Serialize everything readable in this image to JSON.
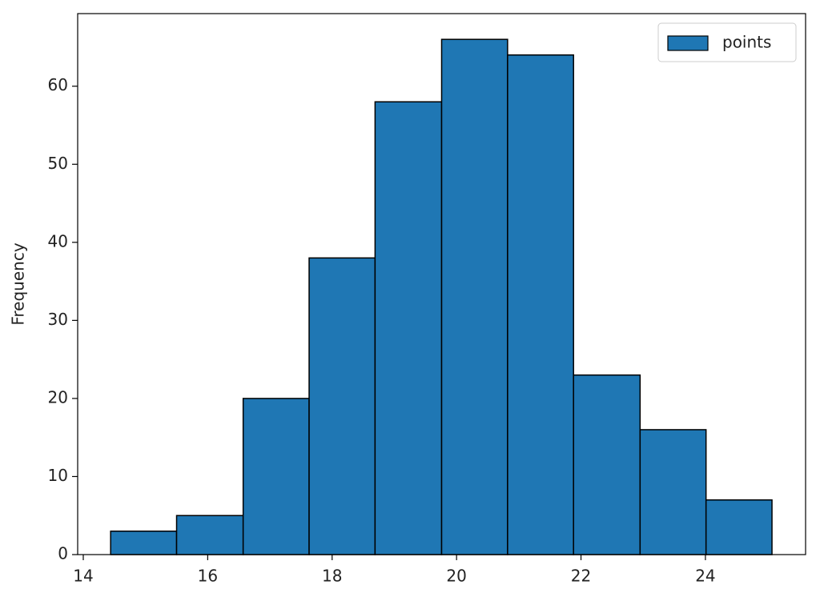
{
  "chart_data": {
    "type": "histogram",
    "ylabel": "Frequency",
    "bins": [
      14.44,
      15.5,
      16.57,
      17.63,
      18.69,
      19.76,
      20.82,
      21.88,
      22.95,
      24.01,
      25.07
    ],
    "series": [
      {
        "name": "points",
        "color": "#1f77b4",
        "values": [
          3,
          5,
          20,
          38,
          58,
          66,
          64,
          23,
          16,
          7
        ]
      }
    ],
    "edgecolor": "#000000",
    "xlim": [
      13.91,
      25.61
    ],
    "ylim": [
      0,
      69.3
    ],
    "xticks": [
      14,
      16,
      18,
      20,
      22,
      24
    ],
    "yticks": [
      0,
      10,
      20,
      30,
      40,
      50,
      60
    ],
    "legend": "upper right"
  }
}
